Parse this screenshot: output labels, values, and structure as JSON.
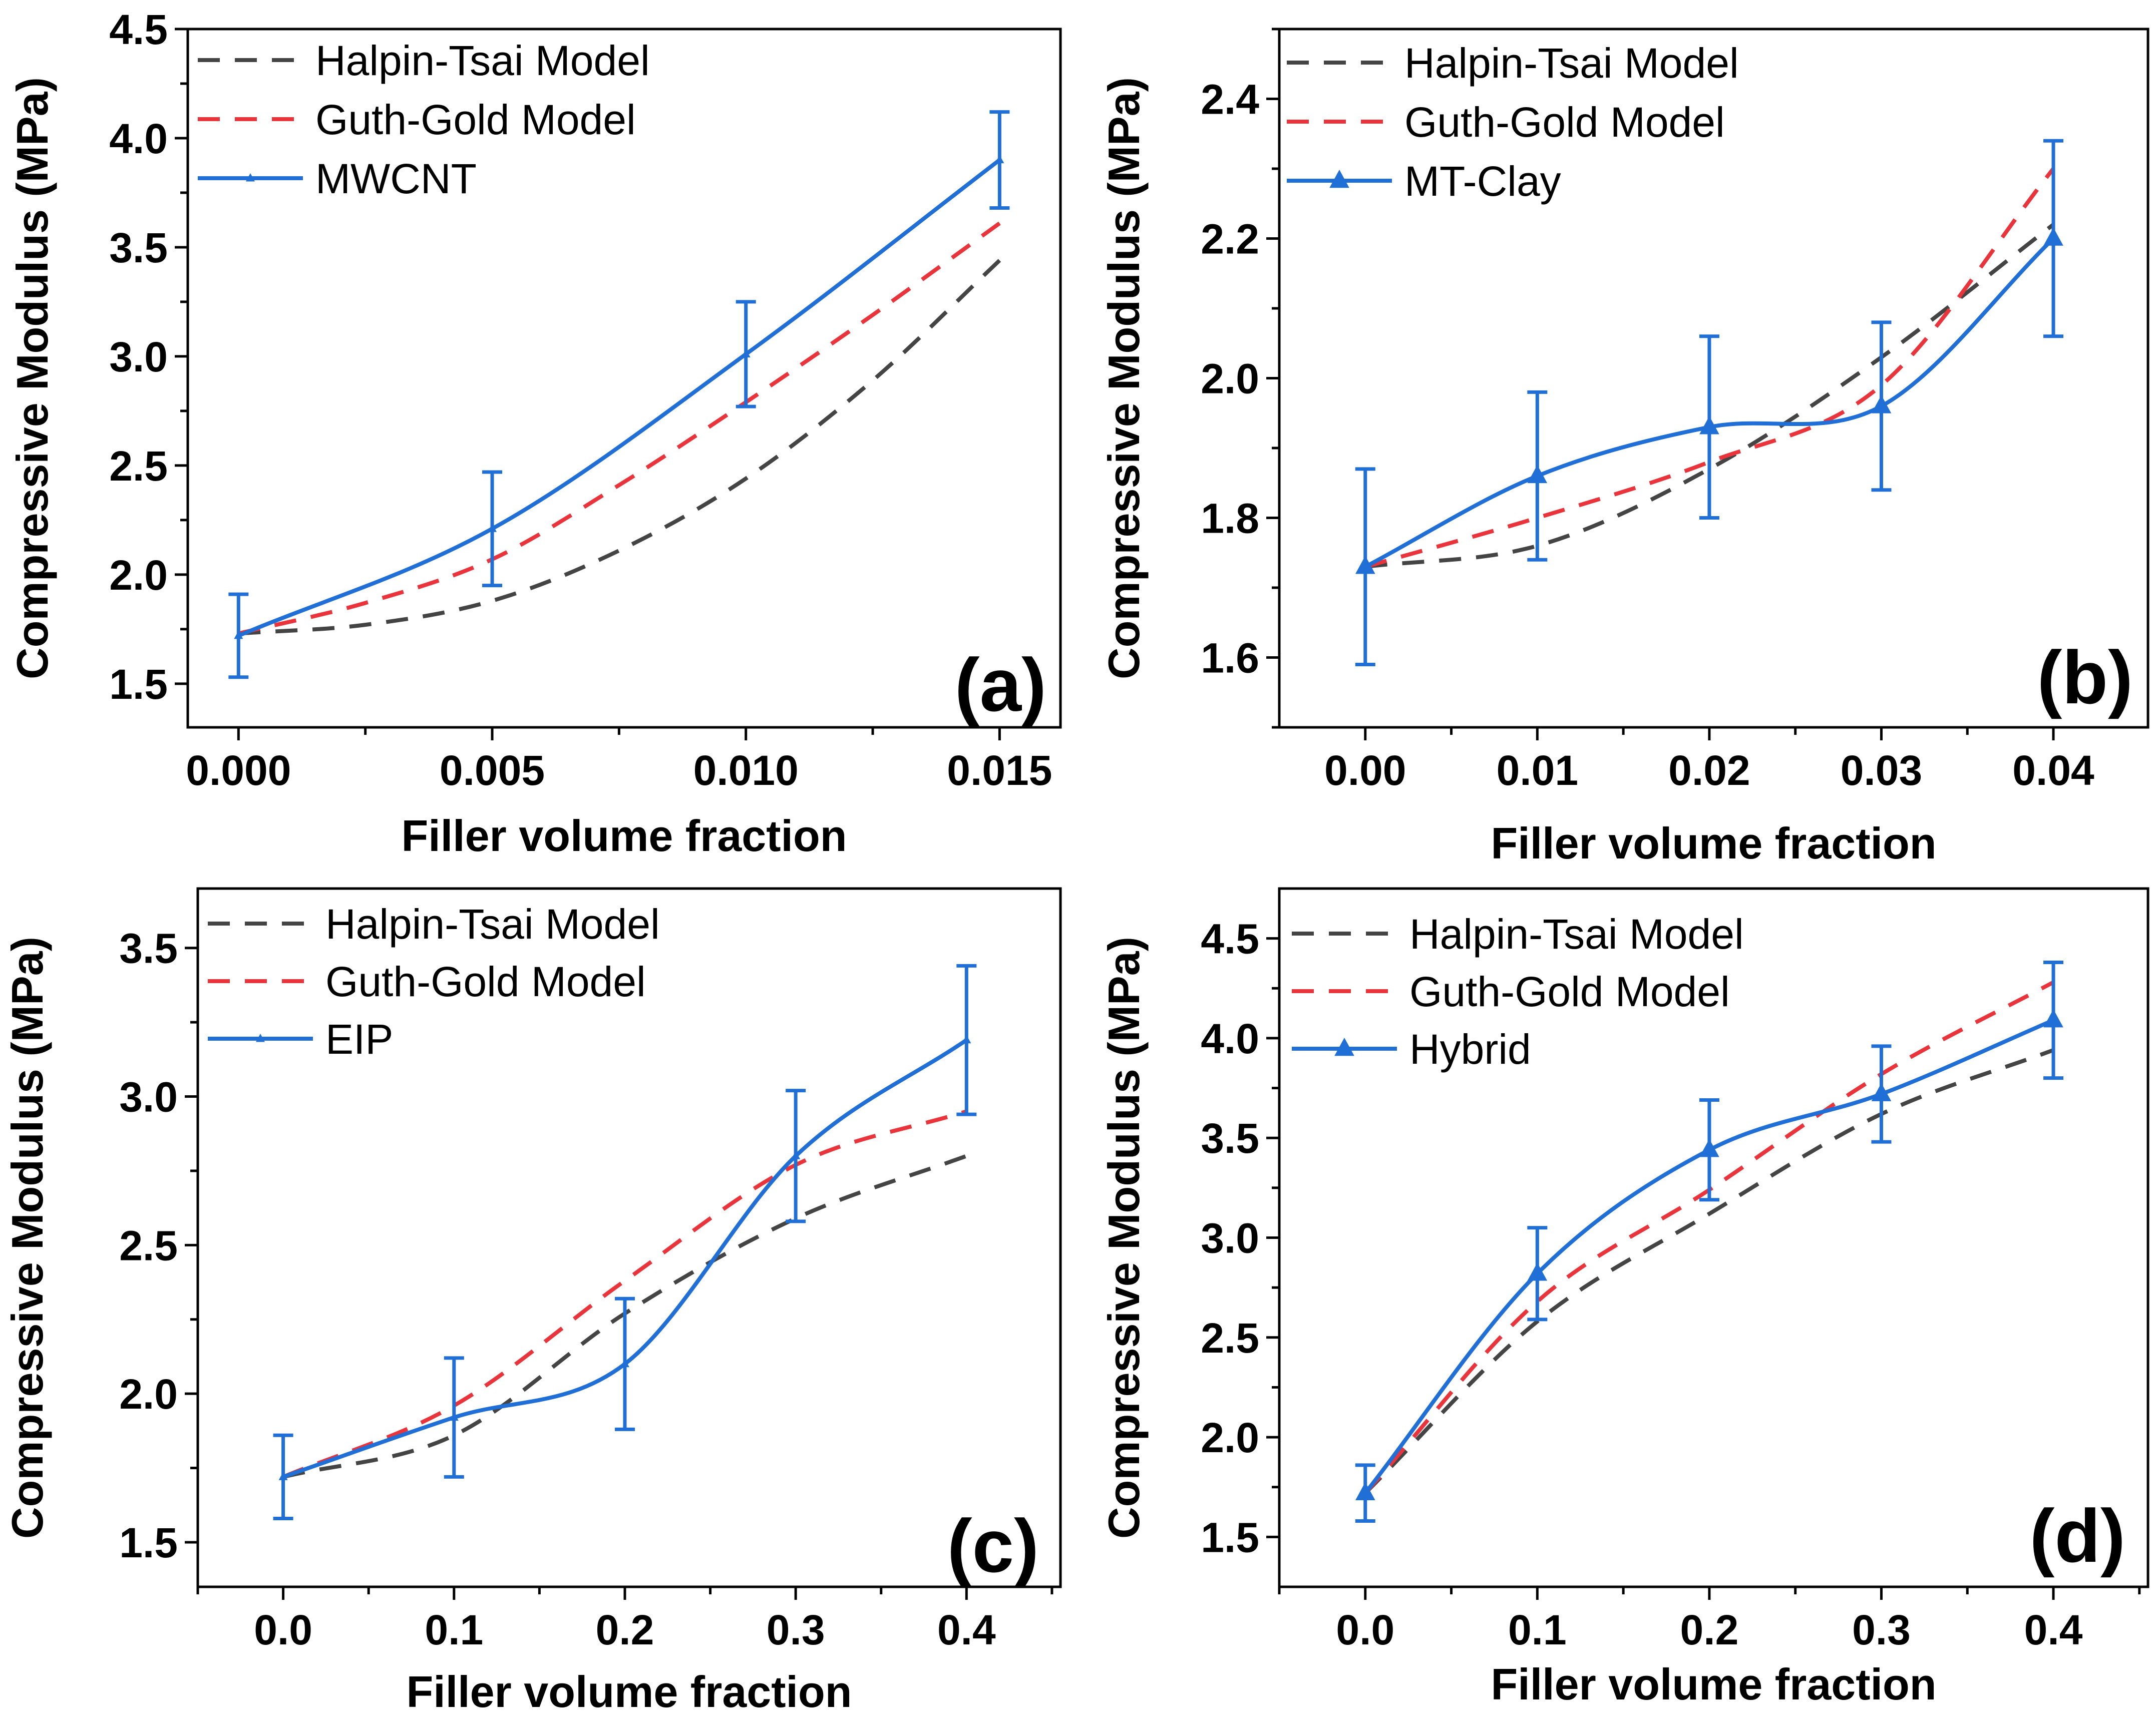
{
  "colors": {
    "halpin": "#444444",
    "guth": "#e8343a",
    "exp": "#1f6fd6",
    "axis": "#000000"
  },
  "chart_data": [
    {
      "type": "line",
      "panel": "(a)",
      "xlabel": "Filler volume fraction",
      "ylabel": "Compressive Modulus (MPa)",
      "xlim": [
        -0.001,
        0.0162
      ],
      "ylim": [
        1.3,
        4.5
      ],
      "xticks": [
        0,
        0.005,
        0.01,
        0.015
      ],
      "xtick_labels": [
        "0.000",
        "0.005",
        "0.010",
        "0.015"
      ],
      "xminor": [
        0.0025,
        0.0075,
        0.0125
      ],
      "yticks": [
        1.5,
        2.0,
        2.5,
        3.0,
        3.5,
        4.0,
        4.5
      ],
      "ytick_labels": [
        "1.5",
        "2.0",
        "2.5",
        "3.0",
        "3.5",
        "4.0",
        "4.5"
      ],
      "yminor": [
        1.75,
        2.25,
        2.75,
        3.25,
        3.75,
        4.25
      ],
      "legend_position": "top-left",
      "series": [
        {
          "name": "Halpin-Tsai Model",
          "style": "dash",
          "color": "#444444",
          "x": [
            0,
            0.0025,
            0.005,
            0.0075,
            0.01,
            0.0125,
            0.015
          ],
          "values": [
            1.73,
            1.77,
            1.88,
            2.11,
            2.44,
            2.89,
            3.44
          ]
        },
        {
          "name": "Guth-Gold Model",
          "style": "dash",
          "color": "#e8343a",
          "x": [
            0,
            0.0025,
            0.005,
            0.0075,
            0.01,
            0.0125,
            0.015
          ],
          "values": [
            1.73,
            1.87,
            2.07,
            2.41,
            2.79,
            3.19,
            3.61
          ]
        },
        {
          "name": "MWCNT",
          "style": "solid",
          "color": "#1f6fd6",
          "marker": "small-triangle",
          "x": [
            0,
            0.005,
            0.01,
            0.015
          ],
          "values": [
            1.72,
            2.21,
            3.01,
            3.9
          ],
          "errors": [
            0.19,
            0.26,
            0.24,
            0.22
          ]
        }
      ]
    },
    {
      "type": "line",
      "panel": "(b)",
      "xlabel": "Filler volume fraction",
      "ylabel": "Compressive Modulus (MPa)",
      "xlim": [
        -0.005,
        0.0455
      ],
      "ylim": [
        1.5,
        2.5
      ],
      "xticks": [
        0,
        0.01,
        0.02,
        0.03,
        0.04
      ],
      "xtick_labels": [
        "0.00",
        "0.01",
        "0.02",
        "0.03",
        "0.04"
      ],
      "xminor": [
        0.005,
        0.015,
        0.025,
        0.035
      ],
      "yticks": [
        1.6,
        1.8,
        2.0,
        2.2,
        2.4
      ],
      "ytick_labels": [
        "1.6",
        "1.8",
        "2.0",
        "2.2",
        "2.4"
      ],
      "yminor": [
        1.5,
        1.7,
        1.9,
        2.1,
        2.3,
        2.5
      ],
      "legend_position": "top-left",
      "series": [
        {
          "name": "Halpin-Tsai Model",
          "style": "dash",
          "color": "#444444",
          "x": [
            0,
            0.01,
            0.02,
            0.03,
            0.04
          ],
          "values": [
            1.73,
            1.76,
            1.87,
            2.03,
            2.22
          ]
        },
        {
          "name": "Guth-Gold Model",
          "style": "dash",
          "color": "#e8343a",
          "x": [
            0,
            0.01,
            0.02,
            0.03,
            0.04
          ],
          "values": [
            1.73,
            1.8,
            1.88,
            1.99,
            2.3
          ]
        },
        {
          "name": "MT-Clay",
          "style": "solid",
          "color": "#1f6fd6",
          "marker": "triangle",
          "x": [
            0,
            0.01,
            0.02,
            0.03,
            0.04
          ],
          "values": [
            1.73,
            1.86,
            1.93,
            1.96,
            2.2
          ],
          "errors": [
            0.14,
            0.12,
            0.13,
            0.12,
            0.14
          ]
        }
      ]
    },
    {
      "type": "line",
      "panel": "(c)",
      "xlabel": "Filler volume fraction",
      "ylabel": "Compressive Modulus (MPa)",
      "xlim": [
        -0.05,
        0.455
      ],
      "ylim": [
        1.35,
        3.7
      ],
      "xticks": [
        0,
        0.1,
        0.2,
        0.3,
        0.4
      ],
      "xtick_labels": [
        "0.0",
        "0.1",
        "0.2",
        "0.3",
        "0.4"
      ],
      "xminor": [
        -0.05,
        0.05,
        0.15,
        0.25,
        0.35,
        0.45
      ],
      "yticks": [
        1.5,
        2.0,
        2.5,
        3.0,
        3.5
      ],
      "ytick_labels": [
        "1.5",
        "2.0",
        "2.5",
        "3.0",
        "3.5"
      ],
      "yminor": [
        1.75,
        2.25,
        2.75,
        3.25
      ],
      "legend_position": "top-left",
      "series": [
        {
          "name": "Halpin-Tsai Model",
          "style": "dash",
          "color": "#444444",
          "x": [
            0,
            0.1,
            0.2,
            0.3,
            0.4
          ],
          "values": [
            1.72,
            1.86,
            2.27,
            2.59,
            2.8
          ]
        },
        {
          "name": "Guth-Gold Model",
          "style": "dash",
          "color": "#e8343a",
          "x": [
            0,
            0.1,
            0.2,
            0.3,
            0.4
          ],
          "values": [
            1.72,
            1.96,
            2.38,
            2.77,
            2.95
          ]
        },
        {
          "name": "EIP",
          "style": "solid",
          "color": "#1f6fd6",
          "marker": "small-triangle",
          "x": [
            0,
            0.1,
            0.2,
            0.3,
            0.4
          ],
          "values": [
            1.72,
            1.92,
            2.1,
            2.8,
            3.19
          ],
          "errors": [
            0.14,
            0.2,
            0.22,
            0.22,
            0.25
          ]
        }
      ]
    },
    {
      "type": "line",
      "panel": "(d)",
      "xlabel": "Filler volume fraction",
      "ylabel": "Compressive Modulus (MPa)",
      "xlim": [
        -0.05,
        0.455
      ],
      "ylim": [
        1.25,
        4.75
      ],
      "xticks": [
        0,
        0.1,
        0.2,
        0.3,
        0.4
      ],
      "xtick_labels": [
        "0.0",
        "0.1",
        "0.2",
        "0.3",
        "0.4"
      ],
      "xminor": [
        -0.05,
        0.05,
        0.15,
        0.25,
        0.35,
        0.45
      ],
      "yticks": [
        1.5,
        2.0,
        2.5,
        3.0,
        3.5,
        4.0,
        4.5
      ],
      "ytick_labels": [
        "1.5",
        "2.0",
        "2.5",
        "3.0",
        "3.5",
        "4.0",
        "4.5"
      ],
      "yminor": [
        1.75,
        2.25,
        2.75,
        3.25,
        3.75,
        4.25
      ],
      "legend_position": "top-left",
      "series": [
        {
          "name": "Halpin-Tsai Model",
          "style": "dash",
          "color": "#444444",
          "x": [
            0,
            0.1,
            0.2,
            0.3,
            0.4
          ],
          "values": [
            1.72,
            2.58,
            3.12,
            3.62,
            3.94
          ]
        },
        {
          "name": "Guth-Gold Model",
          "style": "dash",
          "color": "#e8343a",
          "x": [
            0,
            0.1,
            0.2,
            0.3,
            0.4
          ],
          "values": [
            1.72,
            2.68,
            3.24,
            3.82,
            4.28
          ]
        },
        {
          "name": "Hybrid",
          "style": "solid",
          "color": "#1f6fd6",
          "marker": "triangle",
          "x": [
            0,
            0.1,
            0.2,
            0.3,
            0.4
          ],
          "values": [
            1.72,
            2.82,
            3.44,
            3.72,
            4.09
          ],
          "errors": [
            0.14,
            0.23,
            0.25,
            0.24,
            0.29
          ]
        }
      ]
    }
  ]
}
